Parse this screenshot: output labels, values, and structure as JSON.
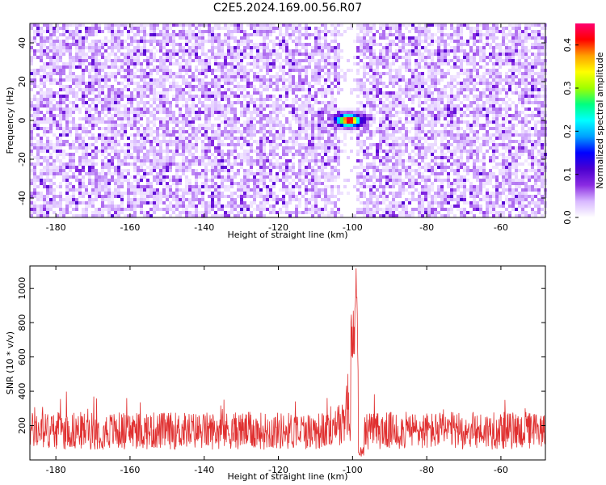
{
  "title": "C2E5.2024.169.00.56.R07",
  "colors": {
    "signal": "#e03030",
    "background": "#ffffff",
    "colormap": [
      "#ffffff",
      "#d8b8ff",
      "#8a2be2",
      "#4b00d0",
      "#0000ff",
      "#00a0ff",
      "#00ffff",
      "#00ff80",
      "#a0ff00",
      "#ffff00",
      "#ffa000",
      "#ff0000",
      "#ff0070"
    ]
  },
  "chart_data": [
    {
      "type": "heatmap",
      "xlabel": "Height of straight line (km)",
      "ylabel": "Frequency (Hz)",
      "xlim": [
        -187,
        -48
      ],
      "ylim": [
        -50,
        50
      ],
      "xticks": [
        -180,
        -160,
        -140,
        -120,
        -100,
        -80,
        -60
      ],
      "yticks": [
        -40,
        -20,
        0,
        20,
        40
      ],
      "gap_x_range": [
        -103,
        -99
      ],
      "hotspot": {
        "x": -101,
        "y": 0,
        "peak_amplitude": 0.45
      },
      "colorbar": {
        "label": "Normalized spectral amplitude",
        "range": [
          0,
          0.45
        ],
        "ticks": [
          0.0,
          0.1,
          0.2,
          0.3,
          0.4
        ]
      }
    },
    {
      "type": "line",
      "xlabel": "Height of straight line (km)",
      "ylabel": "SNR (10 * v/v)",
      "xlim": [
        -187,
        -48
      ],
      "ylim": [
        0,
        1130
      ],
      "xticks": [
        -180,
        -160,
        -140,
        -120,
        -100,
        -80,
        -60
      ],
      "yticks": [
        200,
        400,
        600,
        800,
        1000
      ],
      "baseline_range": [
        60,
        280
      ],
      "peak": {
        "x": -99,
        "y": 1130
      }
    }
  ]
}
